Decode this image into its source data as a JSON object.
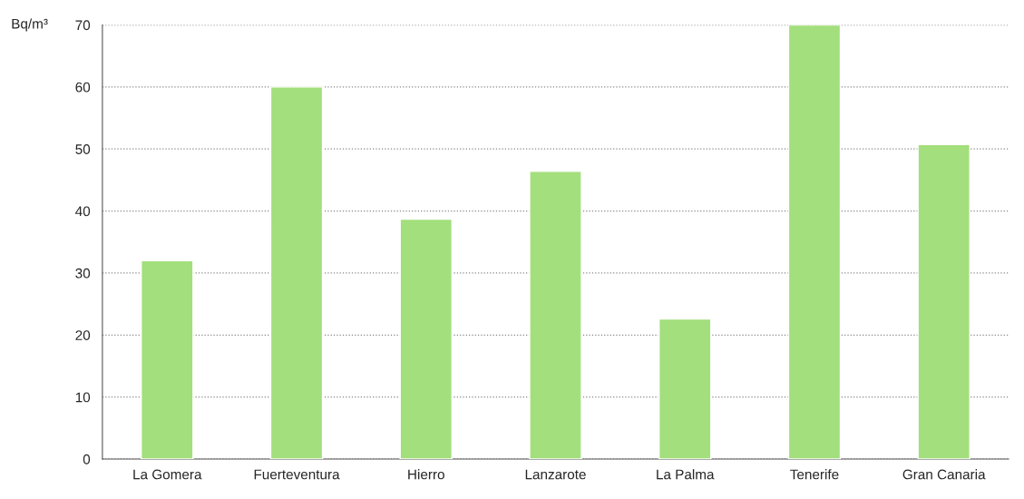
{
  "chart_data": {
    "type": "bar",
    "ylabel": "Bq/m³",
    "categories": [
      "La Gomera",
      "Fuerteventura",
      "Hierro",
      "Lanzarote",
      "La Palma",
      "Tenerife",
      "Gran Canaria"
    ],
    "values": [
      32,
      60,
      38.7,
      46.4,
      22.6,
      70,
      50.7
    ],
    "color": "#a3df7d",
    "ylim": [
      0,
      70
    ],
    "yticks": [
      0,
      10,
      20,
      30,
      40,
      50,
      60,
      70
    ],
    "grid": "y"
  }
}
